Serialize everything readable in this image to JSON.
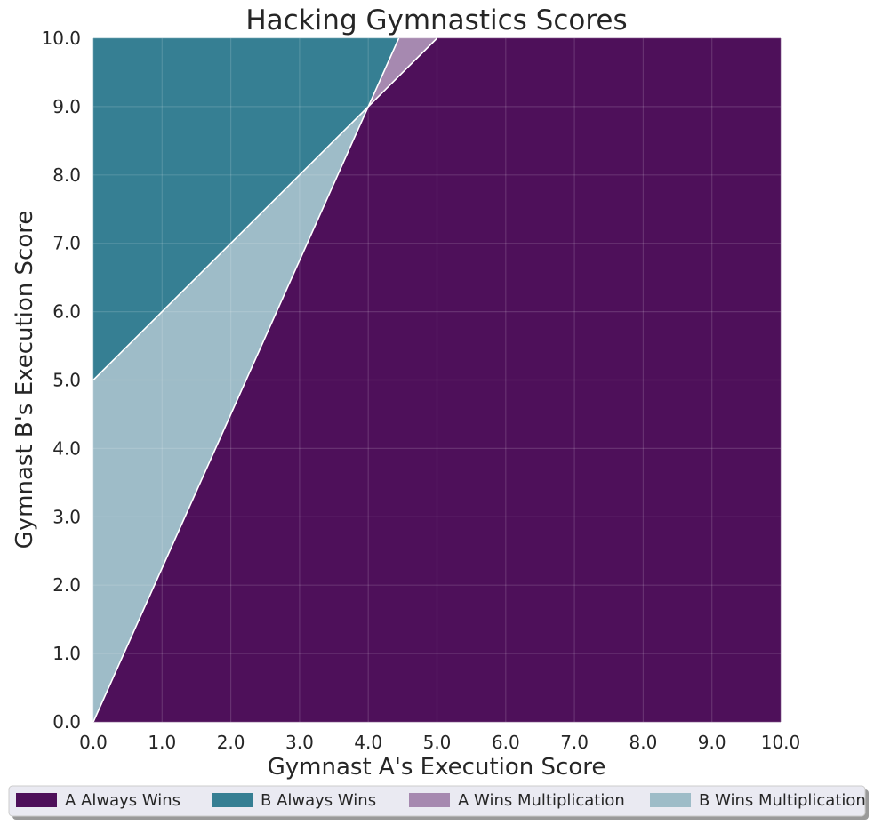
{
  "chart_data": {
    "type": "area",
    "title": "Hacking Gymnastics Scores",
    "xlabel": "Gymnast A's Execution Score",
    "ylabel": "Gymnast B's Execution Score",
    "xlim": [
      0,
      10
    ],
    "ylim": [
      0,
      10
    ],
    "x_ticks": [
      "0.0",
      "1.0",
      "2.0",
      "3.0",
      "4.0",
      "5.0",
      "6.0",
      "7.0",
      "8.0",
      "9.0",
      "10.0"
    ],
    "y_ticks": [
      "0.0",
      "1.0",
      "2.0",
      "3.0",
      "4.0",
      "5.0",
      "6.0",
      "7.0",
      "8.0",
      "9.0",
      "10.0"
    ],
    "grid": true,
    "legend_position": "bottom",
    "regions": [
      {
        "name": "A Always Wins",
        "color": "#4e105a",
        "polygon": [
          [
            0,
            0
          ],
          [
            10,
            0
          ],
          [
            10,
            10
          ],
          [
            5,
            10
          ],
          [
            4,
            9
          ]
        ]
      },
      {
        "name": "B Always Wins",
        "color": "#367f93",
        "polygon": [
          [
            0,
            5
          ],
          [
            4,
            9
          ],
          [
            4.444,
            10
          ],
          [
            0,
            10
          ]
        ]
      },
      {
        "name": "A Wins Multiplication",
        "color": "#a689b0",
        "polygon": [
          [
            4,
            9
          ],
          [
            5,
            10
          ],
          [
            4.444,
            10
          ]
        ]
      },
      {
        "name": "B Wins Multiplication",
        "color": "#9ebcc8",
        "polygon": [
          [
            0,
            0
          ],
          [
            4,
            9
          ],
          [
            0,
            5
          ]
        ]
      }
    ],
    "boundaries": [
      [
        [
          0,
          0
        ],
        [
          4,
          9
        ],
        [
          4.444,
          10
        ]
      ],
      [
        [
          0,
          5
        ],
        [
          4,
          9
        ],
        [
          5,
          10
        ]
      ]
    ]
  }
}
